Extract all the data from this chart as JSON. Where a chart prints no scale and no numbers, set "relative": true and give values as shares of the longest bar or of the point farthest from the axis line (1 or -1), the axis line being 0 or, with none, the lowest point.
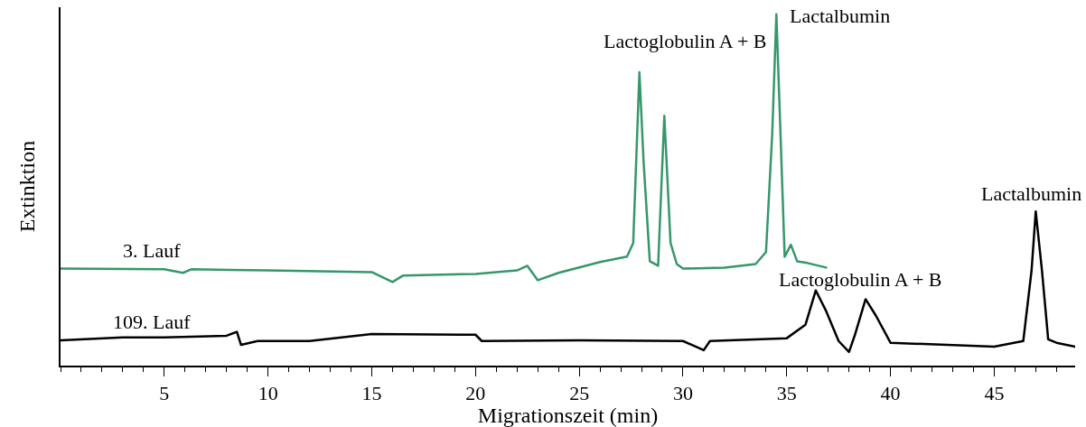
{
  "chart_data": {
    "type": "line",
    "relative": true,
    "xlabel": "Migrationszeit (min)",
    "ylabel": "Extinktion",
    "xlim": [
      0,
      48.9
    ],
    "xticks": [
      5,
      10,
      15,
      20,
      25,
      30,
      35,
      40,
      45
    ],
    "legend": false,
    "series": [
      {
        "name": "3. Lauf",
        "color": "#35976a",
        "x": [
          0,
          5,
          5.9,
          6.3,
          10,
          15,
          16,
          16.5,
          20,
          22,
          22.5,
          23,
          24,
          26,
          27.3,
          27.6,
          27.9,
          28.1,
          28.4,
          28.8,
          29.1,
          29.4,
          29.7,
          30,
          32,
          33.5,
          34.0,
          34.3,
          34.5,
          34.7,
          34.9,
          35.2,
          35.5,
          36,
          36.9
        ],
        "values": [
          0.276,
          0.274,
          0.264,
          0.274,
          0.271,
          0.266,
          0.238,
          0.256,
          0.261,
          0.271,
          0.284,
          0.243,
          0.264,
          0.295,
          0.31,
          0.349,
          0.835,
          0.581,
          0.297,
          0.284,
          0.711,
          0.349,
          0.289,
          0.276,
          0.279,
          0.289,
          0.323,
          0.659,
          1,
          0.659,
          0.31,
          0.344,
          0.297,
          0.292,
          0.279
        ]
      },
      {
        "name": "109. Lauf",
        "color": "#000000",
        "x": [
          0,
          3,
          5,
          8,
          8.5,
          8.7,
          9.5,
          12,
          15,
          20,
          20.3,
          25,
          30,
          31,
          31.3,
          35,
          35.9,
          36.4,
          36.9,
          37.5,
          38,
          38.3,
          38.8,
          39.3,
          40,
          45,
          46.4,
          46.8,
          47.0,
          47.3,
          47.6,
          48,
          48.9
        ],
        "values": [
          0.072,
          0.08,
          0.08,
          0.085,
          0.096,
          0.059,
          0.07,
          0.07,
          0.09,
          0.088,
          0.07,
          0.072,
          0.07,
          0.044,
          0.07,
          0.078,
          0.116,
          0.214,
          0.155,
          0.07,
          0.039,
          0.09,
          0.189,
          0.142,
          0.065,
          0.054,
          0.07,
          0.271,
          0.439,
          0.271,
          0.075,
          0.065,
          0.054
        ]
      }
    ],
    "annotations": [
      {
        "text": "Lactoglobulin A + B",
        "x": 27.9,
        "y": 0.835
      },
      {
        "text": "Lactalbumin",
        "x": 34.5,
        "y": 1
      },
      {
        "text": "Lactoglobulin A + B",
        "x": 36.4,
        "y": 0.214
      },
      {
        "text": "Lactalbumin",
        "x": 47.0,
        "y": 0.439
      }
    ]
  }
}
